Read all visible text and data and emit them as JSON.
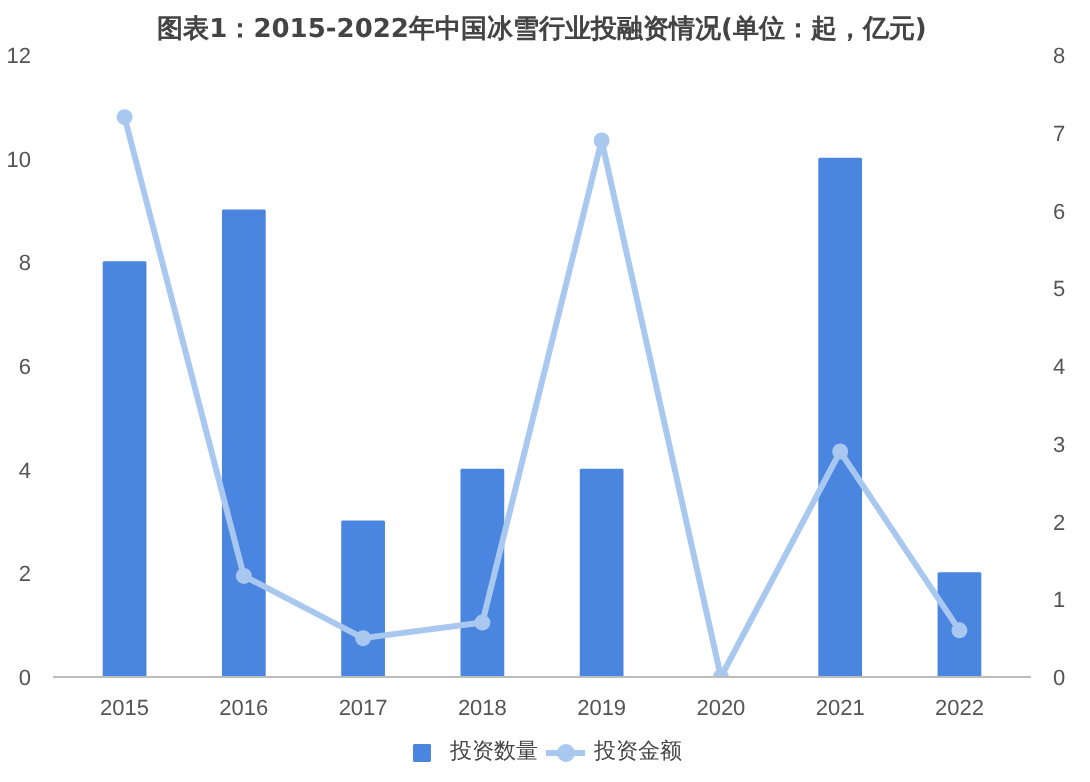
{
  "chart_data": {
    "type": "bar",
    "title": "图表1：2015-2022年中国冰雪行业投融资情况(单位：起，亿元)",
    "categories": [
      "2015",
      "2016",
      "2017",
      "2018",
      "2019",
      "2020",
      "2021",
      "2022"
    ],
    "series": [
      {
        "name": "投资数量",
        "color": "#4a86e0",
        "values": [
          8,
          9,
          3,
          4,
          4,
          0,
          10,
          2
        ]
      },
      {
        "name": "投资金额",
        "color": "#a9c8f0",
        "type": "line",
        "axis": "y2",
        "marker": "circle",
        "values": [
          7.2,
          1.3,
          0.5,
          0.7,
          6.9,
          0,
          2.9,
          0.6
        ]
      }
    ],
    "ylim": [
      0,
      12
    ],
    "yticks": [
      0,
      2,
      4,
      6,
      8,
      10,
      12
    ],
    "y2lim": [
      0,
      8
    ],
    "y2ticks": [
      0,
      1,
      2,
      3,
      4,
      5,
      6,
      7,
      8
    ],
    "grid": false,
    "legend": "bottom"
  }
}
